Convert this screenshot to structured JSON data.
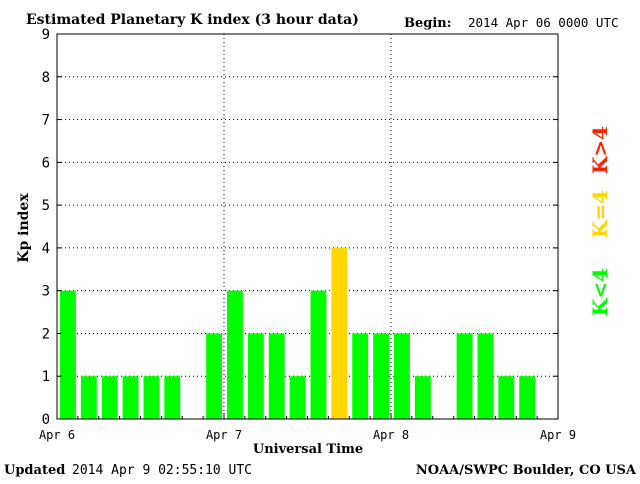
{
  "header": {
    "title": "Estimated Planetary K index (3 hour data)",
    "begin_label": "Begin:",
    "begin_value": "2014 Apr 06 0000 UTC"
  },
  "footer": {
    "updated_label": "Updated",
    "updated_value": "2014 Apr  9 02:55:10 UTC",
    "source": "NOAA/SWPC Boulder, CO USA"
  },
  "legend": {
    "high": "K>4",
    "equal": "K=4",
    "low": "K<4"
  },
  "colors": {
    "low": "#00ff00",
    "equal": "#ffd700",
    "high": "#ff2000",
    "background": "#ffffff",
    "axis": "#000000",
    "grid": "#000000"
  },
  "chart_data": {
    "type": "bar",
    "title": "Estimated Planetary K index (3 hour data)",
    "xlabel": "Universal Time",
    "ylabel": "Kp index",
    "ylim": [
      0,
      9
    ],
    "yticks": [
      "0",
      "1",
      "2",
      "3",
      "4",
      "5",
      "6",
      "7",
      "8",
      "9"
    ],
    "xlim_days": [
      0,
      3
    ],
    "x_tick_labels": [
      "Apr 6",
      "Apr 7",
      "Apr 8",
      "Apr 9"
    ],
    "grid": "dotted",
    "interval_hours": 3,
    "values": [
      3,
      1,
      1,
      1,
      1,
      1,
      0,
      2,
      3,
      2,
      2,
      1,
      3,
      4,
      2,
      2,
      2,
      1,
      0,
      2,
      2,
      1,
      1
    ],
    "legend_position": "right"
  }
}
